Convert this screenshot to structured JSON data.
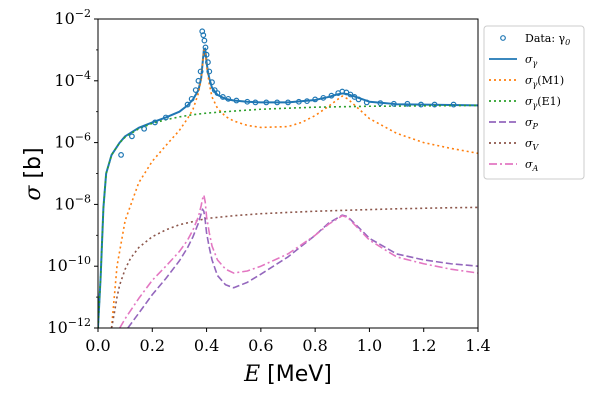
{
  "chart_data": {
    "type": "line",
    "x_scale": "linear",
    "y_scale": "log",
    "xlim": [
      0.0,
      1.4
    ],
    "ylim_log10": [
      -12,
      -2
    ],
    "xlabel": "E [MeV]",
    "xlabel_var": "E",
    "xlabel_unit": " [MeV]",
    "ylabel": "σ [b]",
    "ylabel_var": "σ",
    "ylabel_unit": " [b]",
    "x_ticks": [
      0.0,
      0.2,
      0.4,
      0.6,
      0.8,
      1.0,
      1.2,
      1.4
    ],
    "x_tick_labels": [
      "0.0",
      "0.2",
      "0.4",
      "0.6",
      "0.8",
      "1.0",
      "1.2",
      "1.4"
    ],
    "y_ticks_log10": [
      -12,
      -10,
      -8,
      -6,
      -4,
      -2
    ],
    "y_tick_labels": [
      {
        "base": "10",
        "exp": "−12"
      },
      {
        "base": "10",
        "exp": "−10"
      },
      {
        "base": "10",
        "exp": "−8"
      },
      {
        "base": "10",
        "exp": "−6"
      },
      {
        "base": "10",
        "exp": "−4"
      },
      {
        "base": "10",
        "exp": "−2"
      }
    ],
    "legend_position": "right-outside-top",
    "series": [
      {
        "name": "Data: γ0",
        "label_main": "Data:  γ",
        "label_sub": "0",
        "kind": "scatter",
        "color": "#1f77b4",
        "dash": "",
        "x": [
          0.085,
          0.125,
          0.17,
          0.21,
          0.25,
          0.33,
          0.345,
          0.36,
          0.37,
          0.378,
          0.384,
          0.388,
          0.392,
          0.396,
          0.4,
          0.405,
          0.41,
          0.42,
          0.43,
          0.44,
          0.46,
          0.48,
          0.51,
          0.55,
          0.58,
          0.62,
          0.66,
          0.7,
          0.74,
          0.77,
          0.8,
          0.83,
          0.86,
          0.885,
          0.9,
          0.915,
          0.93,
          0.945,
          0.96,
          0.99,
          1.04,
          1.09,
          1.14,
          1.19,
          1.24,
          1.31
        ],
        "y": [
          4e-07,
          1.6e-06,
          2.8e-06,
          4.5e-06,
          6.5e-06,
          1.7e-05,
          2.6e-05,
          5e-05,
          0.0001,
          0.0002,
          0.004,
          0.003,
          0.002,
          0.0012,
          0.0007,
          0.0004,
          0.0002,
          9e-05,
          5e-05,
          4e-05,
          3e-05,
          2.6e-05,
          2.3e-05,
          2.1e-05,
          2e-05,
          2e-05,
          2e-05,
          2e-05,
          2.1e-05,
          2.2e-05,
          2.5e-05,
          2.8e-05,
          3.3e-05,
          4e-05,
          4.5e-05,
          4.2e-05,
          3.6e-05,
          3e-05,
          2.5e-05,
          2e-05,
          1.9e-05,
          1.8e-05,
          1.8e-05,
          1.7e-05,
          1.7e-05,
          1.7e-05
        ]
      },
      {
        "name": "σ_γ",
        "label_main": "σ",
        "label_sub": "γ",
        "kind": "line",
        "color": "#1f77b4",
        "dash": "",
        "x": [
          0.0,
          0.01,
          0.02,
          0.03,
          0.05,
          0.08,
          0.1,
          0.15,
          0.2,
          0.25,
          0.3,
          0.33,
          0.35,
          0.37,
          0.38,
          0.39,
          0.395,
          0.4,
          0.405,
          0.41,
          0.42,
          0.44,
          0.47,
          0.5,
          0.55,
          0.6,
          0.7,
          0.8,
          0.85,
          0.88,
          0.9,
          0.92,
          0.95,
          1.0,
          1.1,
          1.2,
          1.3,
          1.4
        ],
        "y": [
          1e-12,
          5e-11,
          8e-09,
          1e-07,
          4e-07,
          1e-06,
          1.6e-06,
          3e-06,
          4.5e-06,
          6.5e-06,
          1e-05,
          1.6e-05,
          2.5e-05,
          5e-05,
          0.00012,
          0.001,
          0.0011,
          0.0004,
          0.0002,
          0.00012,
          6e-05,
          3.5e-05,
          2.6e-05,
          2.3e-05,
          2.1e-05,
          2e-05,
          2e-05,
          2.4e-05,
          3e-05,
          3.6e-05,
          3.9e-05,
          3.7e-05,
          3e-05,
          2.1e-05,
          1.75e-05,
          1.7e-05,
          1.65e-05,
          1.6e-05
        ]
      },
      {
        "name": "σ_γ(M1)",
        "label_main": "σ",
        "label_sub": "γ",
        "label_suffix": "(M1)",
        "kind": "line",
        "color": "#ff7f0e",
        "dash": "2,3",
        "x": [
          0.05,
          0.07,
          0.1,
          0.15,
          0.2,
          0.25,
          0.3,
          0.33,
          0.35,
          0.37,
          0.38,
          0.39,
          0.395,
          0.4,
          0.41,
          0.42,
          0.44,
          0.47,
          0.5,
          0.55,
          0.6,
          0.7,
          0.75,
          0.8,
          0.85,
          0.88,
          0.9,
          0.92,
          0.95,
          1.0,
          1.1,
          1.2,
          1.3,
          1.4
        ],
        "y": [
          1e-12,
          1e-10,
          3e-09,
          5e-08,
          2.5e-07,
          8e-07,
          2.5e-06,
          6e-06,
          1.2e-05,
          4e-05,
          0.00011,
          0.001,
          0.001,
          0.0003,
          8e-05,
          3e-05,
          1.3e-05,
          7e-06,
          5e-06,
          3.6e-06,
          3.1e-06,
          3.3e-06,
          4.5e-06,
          7.5e-06,
          1.5e-05,
          2.4e-05,
          3.2e-05,
          2.6e-05,
          1.5e-05,
          6e-06,
          2e-06,
          1e-06,
          6.5e-07,
          4.5e-07
        ]
      },
      {
        "name": "σ_γ(E1)",
        "label_main": "σ",
        "label_sub": "γ",
        "label_suffix": "(E1)",
        "kind": "line",
        "color": "#2ca02c",
        "dash": "2,3",
        "x": [
          0.0,
          0.01,
          0.02,
          0.03,
          0.05,
          0.08,
          0.1,
          0.15,
          0.2,
          0.25,
          0.3,
          0.35,
          0.4,
          0.5,
          0.6,
          0.7,
          0.8,
          0.9,
          1.0,
          1.1,
          1.2,
          1.3,
          1.4
        ],
        "y": [
          1e-12,
          5e-11,
          8e-09,
          1e-07,
          4e-07,
          1e-06,
          1.5e-06,
          2.8e-06,
          4.2e-06,
          5.5e-06,
          6.8e-06,
          8e-06,
          9e-06,
          1.05e-05,
          1.2e-05,
          1.3e-05,
          1.4e-05,
          1.45e-05,
          1.5e-05,
          1.52e-05,
          1.55e-05,
          1.57e-05,
          1.6e-05
        ]
      },
      {
        "name": "σ_P",
        "label_main": "σ",
        "label_sub": "P",
        "kind": "line",
        "color": "#9467bd",
        "dash": "7,3",
        "x": [
          0.11,
          0.15,
          0.2,
          0.25,
          0.3,
          0.33,
          0.35,
          0.37,
          0.38,
          0.385,
          0.39,
          0.395,
          0.4,
          0.41,
          0.42,
          0.44,
          0.47,
          0.5,
          0.55,
          0.6,
          0.7,
          0.8,
          0.85,
          0.9,
          0.92,
          0.95,
          1.0,
          1.1,
          1.2,
          1.3,
          1.4
        ],
        "y": [
          1e-12,
          3e-12,
          1.2e-11,
          4e-11,
          1.5e-10,
          4e-10,
          9e-10,
          2.5e-09,
          5e-09,
          7e-09,
          6e-09,
          3e-09,
          1.2e-09,
          4e-10,
          1.6e-10,
          5e-11,
          2.5e-11,
          2e-11,
          3e-11,
          5.5e-11,
          2e-10,
          1e-09,
          2.5e-09,
          4.5e-09,
          4e-09,
          2.2e-09,
          8e-10,
          2.5e-10,
          1.6e-10,
          1.2e-10,
          1e-10
        ]
      },
      {
        "name": "σ_V",
        "label_main": "σ",
        "label_sub": "V",
        "kind": "line",
        "color": "#8c564b",
        "dash": "2,3",
        "x": [
          0.05,
          0.06,
          0.07,
          0.08,
          0.1,
          0.12,
          0.15,
          0.2,
          0.25,
          0.3,
          0.4,
          0.5,
          0.6,
          0.7,
          0.8,
          0.9,
          1.0,
          1.1,
          1.2,
          1.3,
          1.4
        ],
        "y": [
          1e-12,
          3e-12,
          1e-11,
          2.5e-11,
          8e-11,
          1.8e-10,
          4e-10,
          9e-10,
          1.5e-09,
          2.2e-09,
          3.5e-09,
          4.3e-09,
          5e-09,
          5.5e-09,
          6e-09,
          6.4e-09,
          6.8e-09,
          7.2e-09,
          7.5e-09,
          7.8e-09,
          8e-09
        ]
      },
      {
        "name": "σ_A",
        "label_main": "σ",
        "label_sub": "A",
        "kind": "line",
        "color": "#e377c2",
        "dash": "8,3,2,3",
        "x": [
          0.08,
          0.1,
          0.15,
          0.2,
          0.25,
          0.3,
          0.33,
          0.35,
          0.37,
          0.38,
          0.385,
          0.39,
          0.395,
          0.4,
          0.41,
          0.42,
          0.44,
          0.47,
          0.5,
          0.55,
          0.6,
          0.7,
          0.8,
          0.85,
          0.9,
          0.92,
          0.95,
          1.0,
          1.1,
          1.2,
          1.3,
          1.4
        ],
        "y": [
          1e-12,
          2e-12,
          9e-12,
          3.5e-11,
          1e-10,
          3e-10,
          7e-10,
          1.5e-09,
          4e-09,
          9e-09,
          1.5e-08,
          2e-08,
          1.2e-08,
          4e-09,
          1.2e-09,
          4.5e-10,
          1.6e-10,
          8e-11,
          6e-11,
          7e-11,
          1e-10,
          2.5e-10,
          1e-09,
          2.3e-09,
          4.3e-09,
          3.8e-09,
          2e-09,
          7e-10,
          2e-10,
          1.2e-10,
          8e-11,
          6e-11
        ]
      }
    ]
  }
}
